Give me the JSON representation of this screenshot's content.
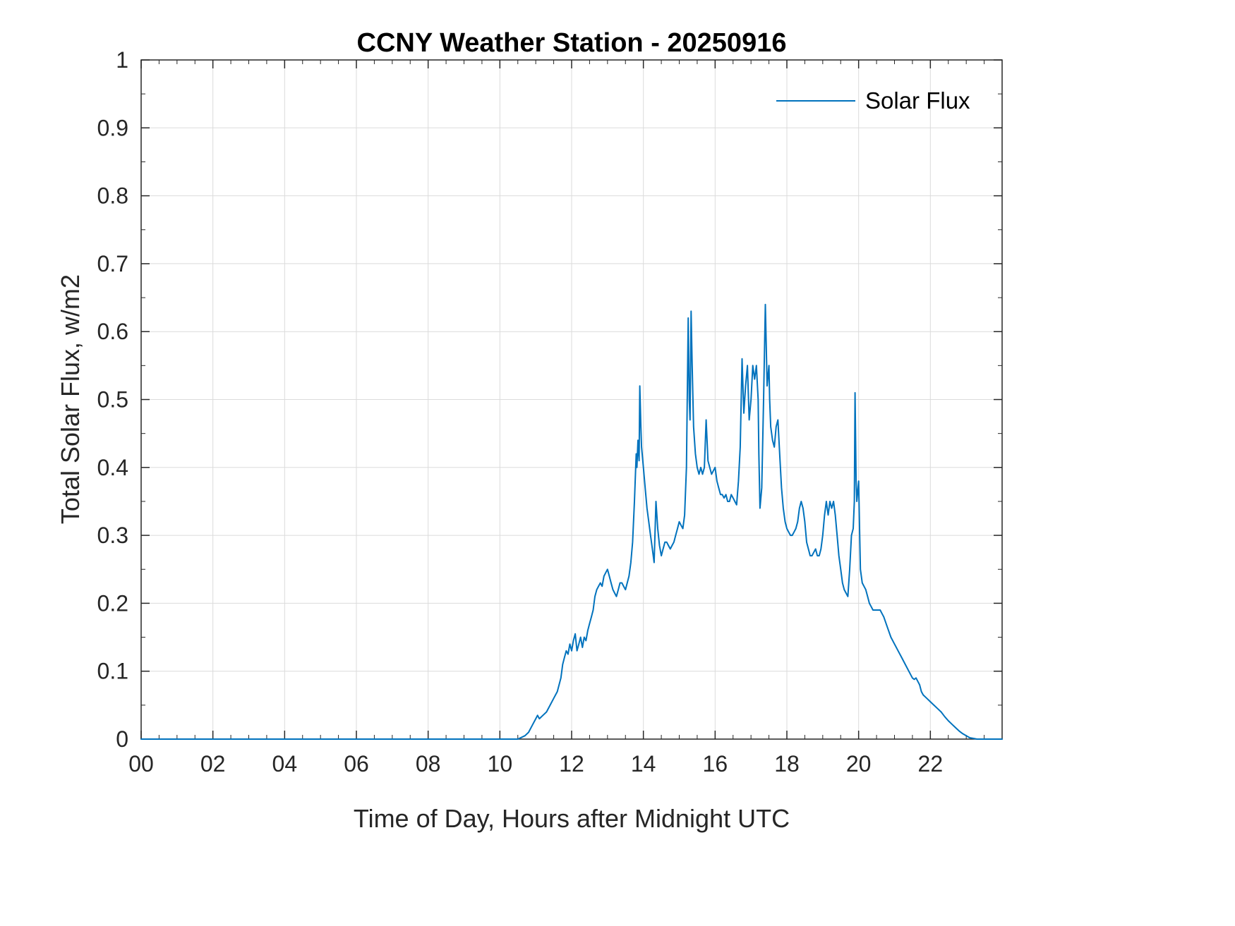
{
  "chart_data": {
    "type": "line",
    "title": "CCNY Weather Station - 20250916",
    "xlabel": "Time of Day, Hours after Midnight UTC",
    "ylabel": "Total Solar Flux, w/m2",
    "xlim": [
      0,
      24
    ],
    "ylim": [
      0,
      1
    ],
    "x_ticks": [
      "00",
      "02",
      "04",
      "06",
      "08",
      "10",
      "12",
      "14",
      "16",
      "18",
      "20",
      "22"
    ],
    "x_tick_values": [
      0,
      2,
      4,
      6,
      8,
      10,
      12,
      14,
      16,
      18,
      20,
      22
    ],
    "y_ticks": [
      "0",
      "0.1",
      "0.2",
      "0.3",
      "0.4",
      "0.5",
      "0.6",
      "0.7",
      "0.8",
      "0.9",
      "1"
    ],
    "y_tick_values": [
      0,
      0.1,
      0.2,
      0.3,
      0.4,
      0.5,
      0.6,
      0.7,
      0.8,
      0.9,
      1
    ],
    "grid": true,
    "colors": {
      "line": "#0072BD",
      "axis": "#262626",
      "grid": "#dbdbdb",
      "background": "#ffffff"
    },
    "legend": {
      "position": "top-right",
      "entries": [
        {
          "label": "Solar Flux",
          "color": "#0072BD"
        }
      ]
    },
    "series": [
      {
        "name": "Solar Flux",
        "color": "#0072BD",
        "points": [
          [
            0,
            0
          ],
          [
            1,
            0
          ],
          [
            2,
            0
          ],
          [
            3,
            0
          ],
          [
            4,
            0
          ],
          [
            5,
            0
          ],
          [
            6,
            0
          ],
          [
            7,
            0
          ],
          [
            8,
            0
          ],
          [
            9,
            0
          ],
          [
            10,
            0
          ],
          [
            10.5,
            0
          ],
          [
            10.7,
            0.005
          ],
          [
            10.8,
            0.01
          ],
          [
            10.9,
            0.02
          ],
          [
            11,
            0.03
          ],
          [
            11.05,
            0.035
          ],
          [
            11.1,
            0.03
          ],
          [
            11.2,
            0.035
          ],
          [
            11.3,
            0.04
          ],
          [
            11.4,
            0.05
          ],
          [
            11.5,
            0.06
          ],
          [
            11.6,
            0.07
          ],
          [
            11.7,
            0.09
          ],
          [
            11.75,
            0.11
          ],
          [
            11.8,
            0.12
          ],
          [
            11.85,
            0.13
          ],
          [
            11.9,
            0.125
          ],
          [
            11.95,
            0.14
          ],
          [
            12,
            0.13
          ],
          [
            12.05,
            0.145
          ],
          [
            12.1,
            0.155
          ],
          [
            12.15,
            0.13
          ],
          [
            12.2,
            0.14
          ],
          [
            12.25,
            0.15
          ],
          [
            12.3,
            0.135
          ],
          [
            12.35,
            0.15
          ],
          [
            12.4,
            0.145
          ],
          [
            12.45,
            0.16
          ],
          [
            12.5,
            0.17
          ],
          [
            12.55,
            0.18
          ],
          [
            12.6,
            0.19
          ],
          [
            12.65,
            0.21
          ],
          [
            12.7,
            0.22
          ],
          [
            12.75,
            0.225
          ],
          [
            12.8,
            0.23
          ],
          [
            12.85,
            0.225
          ],
          [
            12.9,
            0.24
          ],
          [
            12.95,
            0.245
          ],
          [
            13,
            0.25
          ],
          [
            13.05,
            0.24
          ],
          [
            13.1,
            0.23
          ],
          [
            13.15,
            0.22
          ],
          [
            13.2,
            0.215
          ],
          [
            13.25,
            0.21
          ],
          [
            13.3,
            0.22
          ],
          [
            13.35,
            0.23
          ],
          [
            13.4,
            0.23
          ],
          [
            13.45,
            0.225
          ],
          [
            13.5,
            0.22
          ],
          [
            13.55,
            0.23
          ],
          [
            13.6,
            0.24
          ],
          [
            13.65,
            0.26
          ],
          [
            13.7,
            0.29
          ],
          [
            13.75,
            0.35
          ],
          [
            13.8,
            0.42
          ],
          [
            13.82,
            0.4
          ],
          [
            13.85,
            0.44
          ],
          [
            13.88,
            0.41
          ],
          [
            13.9,
            0.52
          ],
          [
            13.93,
            0.46
          ],
          [
            13.95,
            0.43
          ],
          [
            14,
            0.4
          ],
          [
            14.05,
            0.37
          ],
          [
            14.1,
            0.34
          ],
          [
            14.15,
            0.32
          ],
          [
            14.2,
            0.3
          ],
          [
            14.25,
            0.28
          ],
          [
            14.3,
            0.26
          ],
          [
            14.35,
            0.35
          ],
          [
            14.4,
            0.31
          ],
          [
            14.45,
            0.285
          ],
          [
            14.5,
            0.27
          ],
          [
            14.55,
            0.28
          ],
          [
            14.6,
            0.29
          ],
          [
            14.65,
            0.29
          ],
          [
            14.7,
            0.285
          ],
          [
            14.75,
            0.28
          ],
          [
            14.8,
            0.285
          ],
          [
            14.85,
            0.29
          ],
          [
            14.9,
            0.3
          ],
          [
            14.95,
            0.31
          ],
          [
            15,
            0.32
          ],
          [
            15.05,
            0.315
          ],
          [
            15.1,
            0.31
          ],
          [
            15.15,
            0.33
          ],
          [
            15.2,
            0.4
          ],
          [
            15.25,
            0.62
          ],
          [
            15.28,
            0.5
          ],
          [
            15.3,
            0.47
          ],
          [
            15.33,
            0.63
          ],
          [
            15.36,
            0.55
          ],
          [
            15.4,
            0.46
          ],
          [
            15.45,
            0.42
          ],
          [
            15.5,
            0.4
          ],
          [
            15.55,
            0.39
          ],
          [
            15.6,
            0.4
          ],
          [
            15.65,
            0.39
          ],
          [
            15.7,
            0.4
          ],
          [
            15.75,
            0.47
          ],
          [
            15.8,
            0.41
          ],
          [
            15.85,
            0.4
          ],
          [
            15.9,
            0.39
          ],
          [
            15.95,
            0.395
          ],
          [
            16,
            0.4
          ],
          [
            16.05,
            0.38
          ],
          [
            16.1,
            0.37
          ],
          [
            16.15,
            0.36
          ],
          [
            16.2,
            0.36
          ],
          [
            16.25,
            0.355
          ],
          [
            16.3,
            0.36
          ],
          [
            16.35,
            0.35
          ],
          [
            16.4,
            0.35
          ],
          [
            16.45,
            0.36
          ],
          [
            16.5,
            0.355
          ],
          [
            16.55,
            0.35
          ],
          [
            16.6,
            0.345
          ],
          [
            16.65,
            0.38
          ],
          [
            16.7,
            0.43
          ],
          [
            16.75,
            0.56
          ],
          [
            16.8,
            0.48
          ],
          [
            16.85,
            0.52
          ],
          [
            16.9,
            0.55
          ],
          [
            16.95,
            0.47
          ],
          [
            17,
            0.5
          ],
          [
            17.05,
            0.55
          ],
          [
            17.1,
            0.53
          ],
          [
            17.15,
            0.55
          ],
          [
            17.2,
            0.5
          ],
          [
            17.22,
            0.42
          ],
          [
            17.25,
            0.34
          ],
          [
            17.3,
            0.37
          ],
          [
            17.35,
            0.5
          ],
          [
            17.4,
            0.64
          ],
          [
            17.45,
            0.52
          ],
          [
            17.5,
            0.55
          ],
          [
            17.52,
            0.5
          ],
          [
            17.55,
            0.46
          ],
          [
            17.6,
            0.44
          ],
          [
            17.65,
            0.43
          ],
          [
            17.7,
            0.46
          ],
          [
            17.75,
            0.47
          ],
          [
            17.8,
            0.42
          ],
          [
            17.85,
            0.37
          ],
          [
            17.9,
            0.34
          ],
          [
            17.95,
            0.32
          ],
          [
            18,
            0.31
          ],
          [
            18.05,
            0.305
          ],
          [
            18.1,
            0.3
          ],
          [
            18.15,
            0.3
          ],
          [
            18.2,
            0.305
          ],
          [
            18.25,
            0.31
          ],
          [
            18.3,
            0.32
          ],
          [
            18.35,
            0.34
          ],
          [
            18.4,
            0.35
          ],
          [
            18.45,
            0.34
          ],
          [
            18.5,
            0.32
          ],
          [
            18.55,
            0.29
          ],
          [
            18.6,
            0.28
          ],
          [
            18.65,
            0.27
          ],
          [
            18.7,
            0.27
          ],
          [
            18.75,
            0.275
          ],
          [
            18.8,
            0.28
          ],
          [
            18.85,
            0.27
          ],
          [
            18.9,
            0.27
          ],
          [
            18.95,
            0.28
          ],
          [
            19,
            0.3
          ],
          [
            19.05,
            0.33
          ],
          [
            19.1,
            0.35
          ],
          [
            19.15,
            0.33
          ],
          [
            19.2,
            0.35
          ],
          [
            19.25,
            0.34
          ],
          [
            19.3,
            0.35
          ],
          [
            19.35,
            0.33
          ],
          [
            19.4,
            0.3
          ],
          [
            19.45,
            0.27
          ],
          [
            19.5,
            0.25
          ],
          [
            19.55,
            0.23
          ],
          [
            19.6,
            0.22
          ],
          [
            19.65,
            0.215
          ],
          [
            19.7,
            0.21
          ],
          [
            19.75,
            0.25
          ],
          [
            19.8,
            0.3
          ],
          [
            19.85,
            0.31
          ],
          [
            19.88,
            0.35
          ],
          [
            19.9,
            0.51
          ],
          [
            19.93,
            0.38
          ],
          [
            19.95,
            0.35
          ],
          [
            20,
            0.38
          ],
          [
            20.03,
            0.3
          ],
          [
            20.05,
            0.25
          ],
          [
            20.1,
            0.23
          ],
          [
            20.15,
            0.225
          ],
          [
            20.2,
            0.22
          ],
          [
            20.25,
            0.21
          ],
          [
            20.3,
            0.2
          ],
          [
            20.35,
            0.195
          ],
          [
            20.4,
            0.19
          ],
          [
            20.45,
            0.19
          ],
          [
            20.5,
            0.19
          ],
          [
            20.55,
            0.19
          ],
          [
            20.6,
            0.19
          ],
          [
            20.65,
            0.185
          ],
          [
            20.7,
            0.18
          ],
          [
            20.8,
            0.165
          ],
          [
            20.9,
            0.15
          ],
          [
            21,
            0.14
          ],
          [
            21.1,
            0.13
          ],
          [
            21.2,
            0.12
          ],
          [
            21.3,
            0.11
          ],
          [
            21.4,
            0.1
          ],
          [
            21.5,
            0.09
          ],
          [
            21.55,
            0.088
          ],
          [
            21.6,
            0.09
          ],
          [
            21.65,
            0.085
          ],
          [
            21.7,
            0.08
          ],
          [
            21.75,
            0.07
          ],
          [
            21.8,
            0.065
          ],
          [
            21.9,
            0.06
          ],
          [
            22,
            0.055
          ],
          [
            22.1,
            0.05
          ],
          [
            22.2,
            0.045
          ],
          [
            22.3,
            0.04
          ],
          [
            22.4,
            0.033
          ],
          [
            22.5,
            0.027
          ],
          [
            22.6,
            0.022
          ],
          [
            22.7,
            0.017
          ],
          [
            22.8,
            0.012
          ],
          [
            22.9,
            0.008
          ],
          [
            23,
            0.005
          ],
          [
            23.1,
            0.002
          ],
          [
            23.2,
            0.001
          ],
          [
            23.3,
            0
          ],
          [
            23.5,
            0
          ],
          [
            24,
            0
          ]
        ]
      }
    ]
  }
}
